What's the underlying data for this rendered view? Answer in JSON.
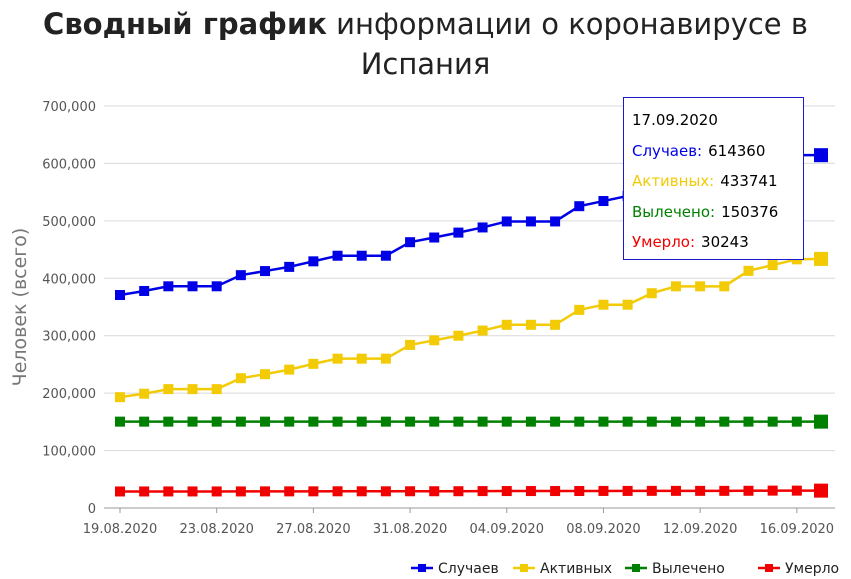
{
  "title": {
    "bold": "Сводный график",
    "rest": " информации о коронавирусе в Испания"
  },
  "tooltip": {
    "date": "17.09.2020",
    "rows": [
      {
        "label": "Случаев:",
        "value": "614360",
        "color": "#0000e6"
      },
      {
        "label": "Активных:",
        "value": "433741",
        "color": "#f2cb05"
      },
      {
        "label": "Вылечено:",
        "value": "150376",
        "color": "#008000"
      },
      {
        "label": "Умерло:",
        "value": "30243",
        "color": "#f00000"
      }
    ]
  },
  "chart_data": {
    "type": "line",
    "ylabel": "Человек (всего)",
    "ylim": [
      0,
      700000
    ],
    "yticks": [
      0,
      100000,
      200000,
      300000,
      400000,
      500000,
      600000,
      700000
    ],
    "ytick_labels": [
      "0",
      "100,000",
      "200,000",
      "300,000",
      "400,000",
      "500,000",
      "600,000",
      "700,000"
    ],
    "x": [
      "19.08.2020",
      "20.08.2020",
      "21.08.2020",
      "22.08.2020",
      "23.08.2020",
      "24.08.2020",
      "25.08.2020",
      "26.08.2020",
      "27.08.2020",
      "28.08.2020",
      "29.08.2020",
      "30.08.2020",
      "31.08.2020",
      "01.09.2020",
      "02.09.2020",
      "03.09.2020",
      "04.09.2020",
      "05.09.2020",
      "06.09.2020",
      "07.09.2020",
      "08.09.2020",
      "09.09.2020",
      "10.09.2020",
      "11.09.2020",
      "12.09.2020",
      "13.09.2020",
      "14.09.2020",
      "15.09.2020",
      "16.09.2020",
      "17.09.2020"
    ],
    "xtick_labels": [
      "19.08.2020",
      "23.08.2020",
      "27.08.2020",
      "31.08.2020",
      "04.09.2020",
      "08.09.2020",
      "12.09.2020",
      "16.09.2020"
    ],
    "legend_position": "bottom-right",
    "grid": true,
    "series": [
      {
        "name": "Случаев",
        "color": "#0000e6",
        "values": [
          370867,
          377906,
          386054,
          386054,
          386054,
          405436,
          412553,
          419849,
          429507,
          439286,
          439286,
          439286,
          462858,
          470973,
          479554,
          488513,
          498989,
          498989,
          498989,
          525549,
          534513,
          543379,
          554143,
          566326,
          566326,
          566326,
          593730,
          603167,
          614360,
          614360
        ]
      },
      {
        "name": "Активных",
        "color": "#f2cb05",
        "values": [
          193000,
          199000,
          207000,
          207000,
          207000,
          226000,
          233000,
          241000,
          251000,
          260000,
          260000,
          260000,
          284000,
          292000,
          300000,
          309000,
          319000,
          319000,
          319000,
          345000,
          354000,
          354000,
          374000,
          386000,
          386000,
          386000,
          413000,
          423000,
          433000,
          433741
        ]
      },
      {
        "name": "Вылечено",
        "color": "#008000",
        "values": [
          150376,
          150376,
          150376,
          150376,
          150376,
          150376,
          150376,
          150376,
          150376,
          150376,
          150376,
          150376,
          150376,
          150376,
          150376,
          150376,
          150376,
          150376,
          150376,
          150376,
          150376,
          150376,
          150376,
          150376,
          150376,
          150376,
          150376,
          150376,
          150376,
          150376
        ]
      },
      {
        "name": "Умерло",
        "color": "#f00000",
        "values": [
          28800,
          28813,
          28838,
          28838,
          28838,
          28872,
          28924,
          28971,
          29011,
          29094,
          29094,
          29094,
          29152,
          29194,
          29234,
          29418,
          29516,
          29516,
          29516,
          29594,
          29699,
          29747,
          29848,
          29848,
          29848,
          29848,
          30004,
          30243,
          30243,
          30243
        ]
      }
    ]
  }
}
